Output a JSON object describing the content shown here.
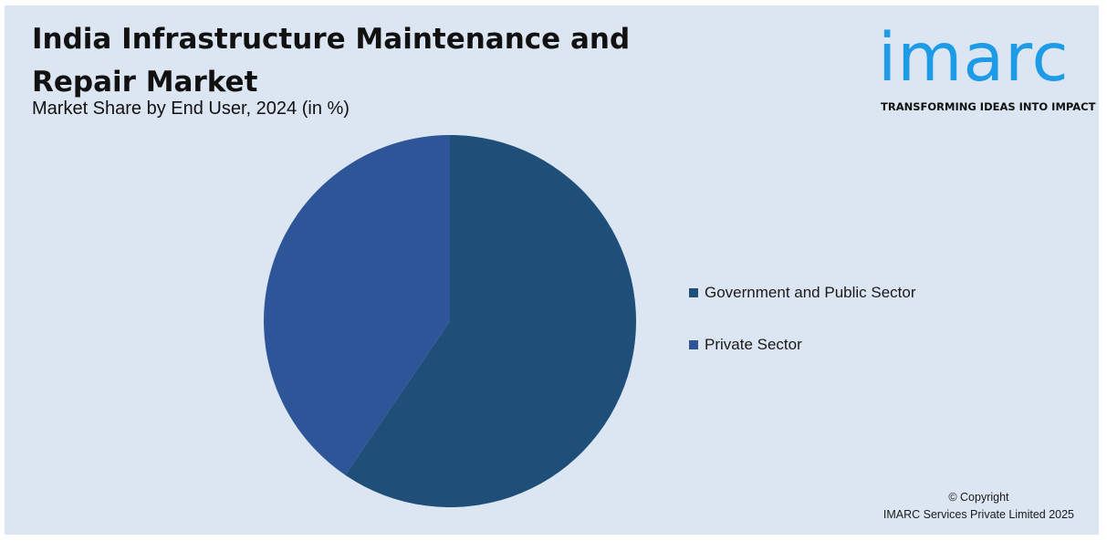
{
  "header": {
    "title": "India Infrastructure Maintenance and Repair Market",
    "subtitle": "Market Share by End User, 2024 (in %)"
  },
  "logo": {
    "wordmark": "imarc",
    "tagline": "TRANSFORMING IDEAS INTO IMPACT",
    "color": "#1e9be6"
  },
  "chart_data": {
    "type": "pie",
    "title": "India Infrastructure Maintenance and Repair Market",
    "subtitle": "Market Share by End User, 2024 (in %)",
    "categories": [
      "Government and Public Sector",
      "Private Sector"
    ],
    "values": [
      59.5,
      40.5
    ],
    "colors": [
      "#1f4e79",
      "#2e5597"
    ],
    "legend_position": "right",
    "start_angle": "12 o'clock, clockwise"
  },
  "footer": {
    "copyright_line1": "© Copyright",
    "copyright_line2": "IMARC Services Private Limited 2025"
  }
}
